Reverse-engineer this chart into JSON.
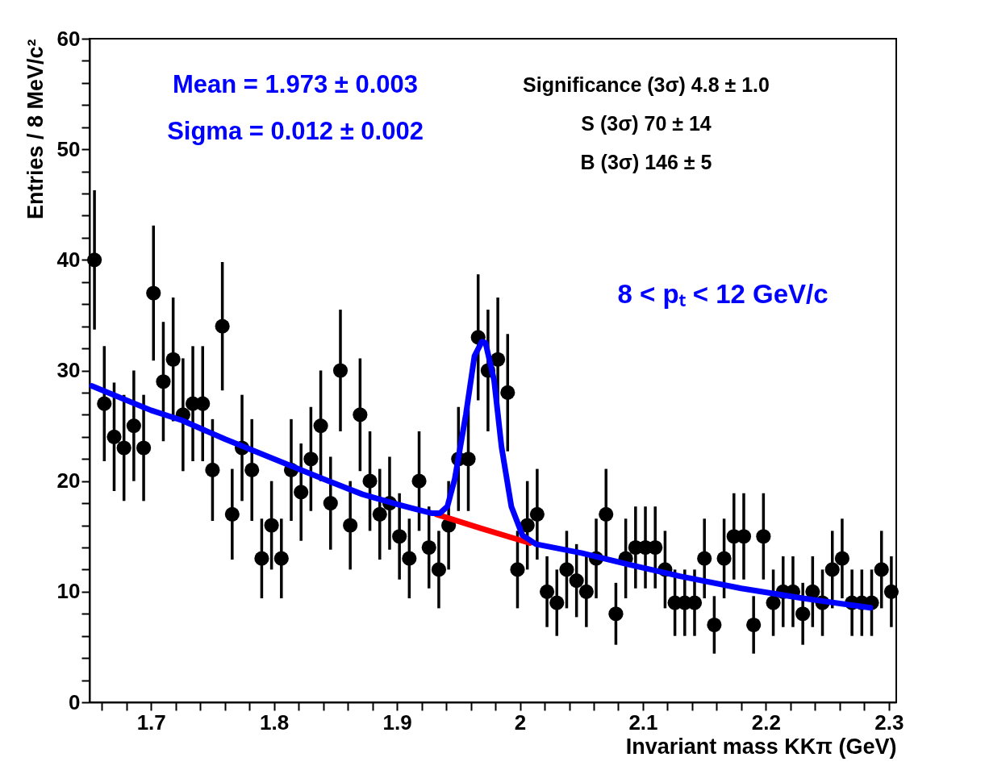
{
  "chart_data": {
    "type": "scatter",
    "xlabel": "Invariant mass KKπ (GeV)",
    "ylabel": "Entries / 8 MeV/c²",
    "xlim": [
      1.65,
      2.306
    ],
    "ylim": [
      0,
      60
    ],
    "xticks": [
      {
        "value": 1.66,
        "label": null
      },
      {
        "value": 1.68,
        "label": null
      },
      1.7,
      {
        "value": 1.72,
        "label": null
      },
      {
        "value": 1.74,
        "label": null
      },
      {
        "value": 1.76,
        "label": null
      },
      {
        "value": 1.78,
        "label": null
      },
      1.8,
      {
        "value": 1.82,
        "label": null
      },
      {
        "value": 1.84,
        "label": null
      },
      {
        "value": 1.86,
        "label": null
      },
      {
        "value": 1.88,
        "label": null
      },
      1.9,
      {
        "value": 1.92,
        "label": null
      },
      {
        "value": 1.94,
        "label": null
      },
      {
        "value": 1.96,
        "label": null
      },
      {
        "value": 1.98,
        "label": null
      },
      2,
      {
        "value": 2.02,
        "label": null
      },
      {
        "value": 2.04,
        "label": null
      },
      {
        "value": 2.06,
        "label": null
      },
      {
        "value": 2.08,
        "label": null
      },
      2.1,
      {
        "value": 2.12,
        "label": null
      },
      {
        "value": 2.14,
        "label": null
      },
      {
        "value": 2.16,
        "label": null
      },
      {
        "value": 2.18,
        "label": null
      },
      2.2,
      {
        "value": 2.22,
        "label": null
      },
      {
        "value": 2.24,
        "label": null
      },
      {
        "value": 2.26,
        "label": null
      },
      {
        "value": 2.28,
        "label": null
      },
      2.3
    ],
    "yticks": [
      0,
      {
        "value": 2,
        "label": null
      },
      {
        "value": 4,
        "label": null
      },
      {
        "value": 6,
        "label": null
      },
      {
        "value": 8,
        "label": null
      },
      10,
      {
        "value": 12,
        "label": null
      },
      {
        "value": 14,
        "label": null
      },
      {
        "value": 16,
        "label": null
      },
      {
        "value": 18,
        "label": null
      },
      20,
      {
        "value": 22,
        "label": null
      },
      {
        "value": 24,
        "label": null
      },
      {
        "value": 26,
        "label": null
      },
      {
        "value": 28,
        "label": null
      },
      30,
      {
        "value": 32,
        "label": null
      },
      {
        "value": 34,
        "label": null
      },
      {
        "value": 36,
        "label": null
      },
      {
        "value": 38,
        "label": null
      },
      40,
      {
        "value": 42,
        "label": null
      },
      {
        "value": 44,
        "label": null
      },
      {
        "value": 46,
        "label": null
      },
      {
        "value": 48,
        "label": null
      },
      50,
      {
        "value": 52,
        "label": null
      },
      {
        "value": 54,
        "label": null
      },
      {
        "value": 56,
        "label": null
      },
      {
        "value": 58,
        "label": null
      },
      60
    ],
    "x": [
      1.654,
      1.662,
      1.67,
      1.678,
      1.686,
      1.694,
      1.702,
      1.71,
      1.718,
      1.726,
      1.734,
      1.742,
      1.75,
      1.758,
      1.766,
      1.774,
      1.782,
      1.79,
      1.798,
      1.806,
      1.814,
      1.822,
      1.83,
      1.838,
      1.846,
      1.854,
      1.862,
      1.87,
      1.878,
      1.886,
      1.894,
      1.902,
      1.91,
      1.918,
      1.926,
      1.934,
      1.942,
      1.95,
      1.958,
      1.966,
      1.974,
      1.982,
      1.99,
      1.998,
      2.006,
      2.014,
      2.022,
      2.03,
      2.038,
      2.046,
      2.054,
      2.062,
      2.07,
      2.078,
      2.086,
      2.094,
      2.102,
      2.11,
      2.118,
      2.126,
      2.134,
      2.142,
      2.15,
      2.158,
      2.166,
      2.174,
      2.182,
      2.19,
      2.198,
      2.206,
      2.214,
      2.222,
      2.23,
      2.238,
      2.246,
      2.254,
      2.262,
      2.27,
      2.278,
      2.286,
      2.294,
      2.302
    ],
    "series": [
      {
        "color": "#000000",
        "marker": "circle",
        "values": [
          40,
          27,
          24,
          23,
          25,
          23,
          37,
          29,
          31,
          26,
          27,
          27,
          21,
          34,
          17,
          23,
          21,
          13,
          16,
          13,
          21,
          19,
          22,
          25,
          18,
          30,
          16,
          26,
          20,
          17,
          18,
          15,
          13,
          20,
          14,
          12,
          16,
          22,
          22,
          33,
          30,
          31,
          28,
          12,
          16,
          17,
          10,
          9,
          12,
          11,
          10,
          13,
          17,
          8,
          13,
          14,
          14,
          14,
          12,
          9,
          9,
          9,
          13,
          7,
          13,
          15,
          15,
          7,
          15,
          9,
          10,
          10,
          8,
          10,
          9,
          12,
          13,
          9,
          9,
          9,
          12,
          10
        ],
        "errors": [
          6.3,
          5.2,
          4.9,
          4.8,
          5.0,
          4.8,
          6.1,
          5.4,
          5.6,
          5.1,
          5.2,
          5.2,
          4.6,
          5.8,
          4.1,
          4.8,
          4.6,
          3.6,
          4.0,
          3.6,
          4.6,
          4.4,
          4.7,
          5.0,
          4.2,
          5.5,
          4.0,
          5.1,
          4.5,
          4.1,
          4.2,
          3.9,
          3.6,
          4.5,
          3.7,
          3.5,
          4.0,
          4.7,
          4.7,
          5.7,
          5.5,
          5.6,
          5.3,
          3.5,
          4.0,
          4.1,
          3.2,
          3.0,
          3.5,
          3.3,
          3.2,
          3.6,
          4.1,
          2.8,
          3.6,
          3.7,
          3.7,
          3.7,
          3.5,
          3.0,
          3.0,
          3.0,
          3.6,
          2.6,
          3.6,
          3.9,
          3.9,
          2.6,
          3.9,
          3.0,
          3.2,
          3.2,
          2.8,
          3.2,
          3.0,
          3.5,
          3.6,
          3.0,
          3.0,
          3.0,
          3.5,
          3.2
        ]
      },
      {
        "type": "line",
        "marker": "none",
        "line_style": "solid",
        "color": "#ff0000",
        "x": [
          1.932,
          1.969,
          2.008
        ],
        "values": [
          17.0,
          15.7,
          14.4
        ]
      },
      {
        "type": "line",
        "marker": "none",
        "line_style": "solid",
        "color": "#0000ff",
        "x": [
          1.652,
          1.7,
          1.725,
          1.76,
          1.8,
          1.84,
          1.872,
          1.9,
          1.928,
          1.935,
          1.941,
          1.947,
          1.956,
          1.963,
          1.969,
          1.972,
          1.979,
          1.985,
          1.993,
          2.002,
          2.013,
          2.05,
          2.087,
          2.13,
          2.18,
          2.23,
          2.285
        ],
        "values": [
          28.6,
          26.4,
          25.5,
          23.8,
          22.0,
          20.2,
          18.8,
          17.9,
          17.1,
          17.1,
          17.7,
          20.2,
          26.0,
          31.3,
          32.6,
          32.5,
          29.1,
          23.1,
          17.7,
          15.1,
          14.3,
          13.5,
          12.5,
          11.4,
          10.3,
          9.4,
          8.55
        ]
      }
    ],
    "annotations": [
      "Mean = 1.973 ± 0.003",
      "Sigma = 0.012 ± 0.002",
      "Significance (3σ) 4.8 ± 1.0",
      "S (3σ) 70 ± 14",
      "B (3σ) 146 ± 5",
      "8 < pₜ < 12 GeV/c"
    ],
    "grid": false
  }
}
